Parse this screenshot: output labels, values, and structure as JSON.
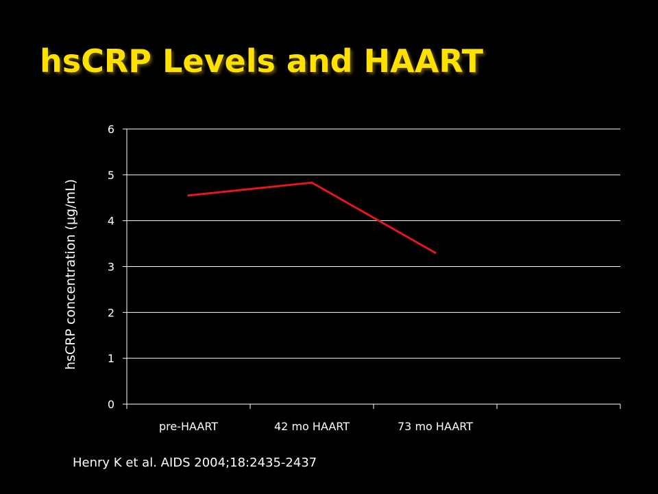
{
  "slide": {
    "title": "hsCRP Levels and HAART",
    "title_color": "#FFE100",
    "background": "#000000",
    "citation": "Henry K et al.  AIDS 2004;18:2435-2437"
  },
  "chart_data": {
    "type": "line",
    "title": "",
    "xlabel": "",
    "ylabel": "hsCRP concentration (μg/mL)",
    "categories": [
      "pre-HAART",
      "42 mo HAART",
      "73 mo HAART",
      ""
    ],
    "series": [
      {
        "values": [
          4.55,
          4.83,
          3.3,
          null
        ],
        "color": "#E3171C"
      }
    ],
    "ylim": [
      0,
      6
    ],
    "yticks": [
      0,
      1,
      2,
      3,
      4,
      5,
      6
    ],
    "grid": true,
    "axis_color": "#ffffff",
    "legend": "none"
  }
}
